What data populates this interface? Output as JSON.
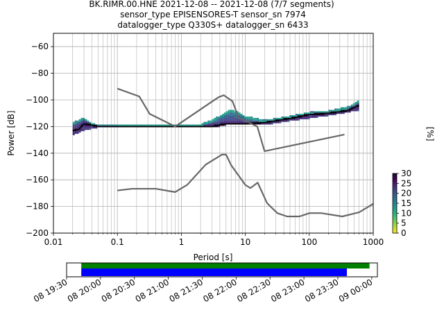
{
  "title": {
    "line1": "BK.RIMR.00.HNE   2021-12-08 -- 2021-12-08  (7/7 segments)",
    "line2": "sensor_type EPISENSORES-T sensor_sn 7974",
    "line3": "datalogger_type Q330S+ datalogger_sn 6433"
  },
  "colors": {
    "nlnm_nhnm": "#666666",
    "grid": "#b0b0b0",
    "coverage_top": "#008000",
    "coverage_bottom": "#0000ff",
    "colormap": [
      "#fde725",
      "#b5de2b",
      "#6ece58",
      "#35b779",
      "#1f9e89",
      "#26828e",
      "#31688e",
      "#3e4989",
      "#482878",
      "#440154",
      "#1a0a2e"
    ]
  },
  "chart_data": [
    {
      "type": "heatmap",
      "title": "",
      "xlabel": "Period [s]",
      "ylabel": "Power [dB]",
      "xscale": "log",
      "xlim": [
        0.01,
        1000
      ],
      "ylim": [
        -200,
        -50
      ],
      "x_ticks": [
        0.01,
        0.1,
        1,
        10,
        100,
        1000
      ],
      "x_tick_labels": [
        "0.01",
        "0.1",
        "1",
        "10",
        "100",
        "1000"
      ],
      "y_ticks": [
        -200,
        -180,
        -160,
        -140,
        -120,
        -100,
        -80,
        -60
      ],
      "y_tick_labels": [
        "−200",
        "−180",
        "−160",
        "−140",
        "−120",
        "−100",
        "−80",
        "−60"
      ],
      "grid": true,
      "colorbar": {
        "label": "[%]",
        "range": [
          0,
          30
        ],
        "ticks": [
          0,
          5,
          10,
          15,
          20,
          25,
          30
        ],
        "tick_labels": [
          "0",
          "5",
          "10",
          "15",
          "20",
          "25",
          "30"
        ]
      },
      "noise_model_high": {
        "period": [
          0.1,
          0.22,
          0.32,
          0.8,
          3.8,
          4.6,
          6.3,
          7.9,
          15.4,
          20,
          354.8
        ],
        "power": [
          -91.5,
          -97.4,
          -110.5,
          -120,
          -98,
          -96.5,
          -101,
          -113.5,
          -120,
          -138.5,
          -126
        ]
      },
      "noise_model_low": {
        "period": [
          0.1,
          0.17,
          0.4,
          0.8,
          1.24,
          2.4,
          4.3,
          5,
          6,
          10,
          12,
          15.6,
          21.9,
          31.6,
          45,
          70,
          101,
          154,
          328,
          600,
          1000
        ],
        "power": [
          -168,
          -166.7,
          -166.7,
          -169.2,
          -163.7,
          -148.6,
          -141.1,
          -141.1,
          -149,
          -163.8,
          -166.2,
          -162.1,
          -177.5,
          -185,
          -187.5,
          -187.5,
          -185,
          -185,
          -187.5,
          -184.4,
          -178
        ]
      },
      "psd_median": {
        "period": [
          0.02,
          0.025,
          0.03,
          0.04,
          0.05,
          0.1,
          0.5,
          1,
          3,
          5,
          10,
          20,
          50,
          100,
          200,
          400,
          600
        ],
        "power": [
          -123,
          -122,
          -118,
          -119,
          -120,
          -120,
          -120,
          -120,
          -120,
          -118,
          -118,
          -117,
          -114,
          -111,
          -110,
          -108,
          -104
        ]
      },
      "psd_mode_upper": {
        "period": [
          0.02,
          0.03,
          0.04,
          0.05,
          2,
          3,
          5,
          6,
          8,
          10,
          20,
          50,
          100,
          200,
          400,
          600
        ],
        "power": [
          -118,
          -114,
          -118,
          -120,
          -119,
          -116,
          -110,
          -108,
          -110,
          -113,
          -116,
          -113,
          -110,
          -109,
          -106,
          -101
        ]
      },
      "psd_mode_lower": {
        "period": [
          0.02,
          0.03,
          0.05,
          2,
          4,
          6,
          10,
          20,
          50,
          100,
          200,
          600
        ],
        "power": [
          -126,
          -122,
          -120,
          -120,
          -118,
          -116,
          -117,
          -118,
          -115,
          -113,
          -111,
          -107
        ]
      }
    },
    {
      "type": "timeline",
      "title": "",
      "xlabel": "",
      "xlim": [
        "2021-12-08 19:30",
        "2021-12-09 00:05"
      ],
      "tick_labels": [
        "08 19:30",
        "08 20:00",
        "08 20:30",
        "08 21:00",
        "08 21:30",
        "08 22:00",
        "08 22:30",
        "08 23:00",
        "08 23:30",
        "09 00:00"
      ],
      "tick_times": [
        "2021-12-08 19:30",
        "2021-12-08 20:00",
        "2021-12-08 20:30",
        "2021-12-08 21:00",
        "2021-12-08 21:30",
        "2021-12-08 22:00",
        "2021-12-08 22:30",
        "2021-12-08 23:00",
        "2021-12-08 23:30",
        "2021-12-09 00:00"
      ],
      "coverage_data": {
        "start": "2021-12-08 19:43",
        "end": "2021-12-08 23:58"
      },
      "coverage_psd": {
        "start": "2021-12-08 19:43",
        "end": "2021-12-08 23:38"
      }
    }
  ]
}
